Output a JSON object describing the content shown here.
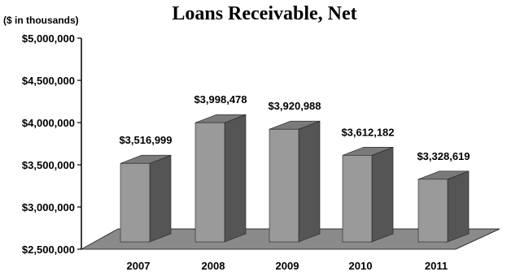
{
  "chart_data": {
    "type": "bar",
    "title": "Loans Receivable, Net",
    "unit_note": "($ in thousands)",
    "categories": [
      "2007",
      "2008",
      "2009",
      "2010",
      "2011"
    ],
    "values": [
      3516999,
      3998478,
      3920988,
      3612182,
      3328619
    ],
    "data_labels": [
      "$3,516,999",
      "$3,998,478",
      "$3,920,988",
      "$3,612,182",
      "$3,328,619"
    ],
    "ylim": [
      2500000,
      5000000
    ],
    "yticks": [
      2500000,
      3000000,
      3500000,
      4000000,
      4500000,
      5000000
    ],
    "ytick_labels": [
      "$2,500,000",
      "$3,000,000",
      "$3,500,000",
      "$4,000,000",
      "$4,500,000",
      "$5,000,000"
    ],
    "grid": false,
    "legend": "none",
    "style": "3d-column"
  },
  "colors": {
    "bar_front": "#9a9a9a",
    "bar_side": "#555555",
    "bar_top": "#7a7a7a",
    "floor": "#8a8a8a",
    "axis": "#000000"
  }
}
